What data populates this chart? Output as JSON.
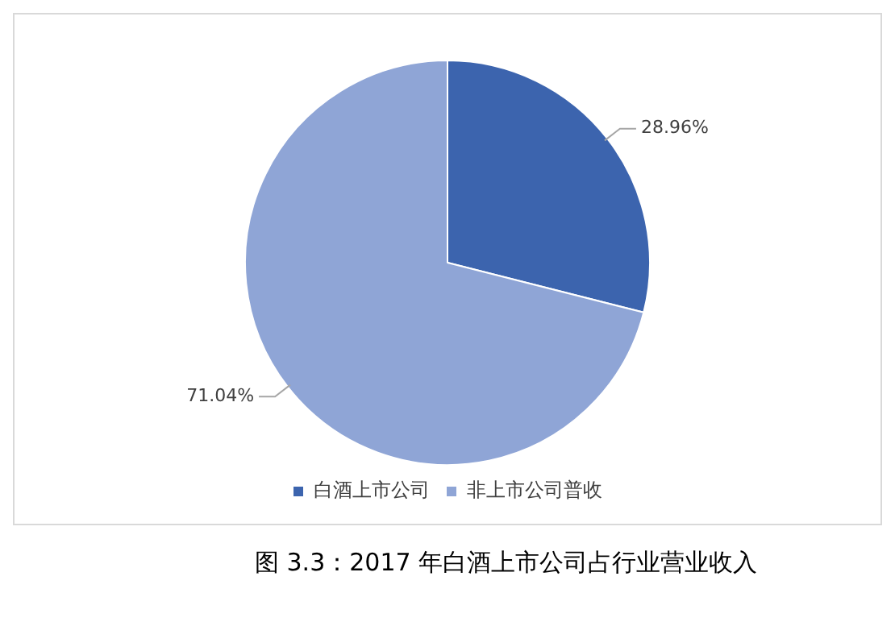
{
  "chart_data": {
    "type": "pie",
    "categories": [
      "白酒上市公司",
      "非上市公司普收"
    ],
    "values": [
      28.96,
      71.04
    ],
    "colors": [
      "#3c64ae",
      "#8fa5d6"
    ],
    "value_labels": [
      "28.96%",
      "71.04%"
    ],
    "legend": "bottom",
    "annotations": [
      "图 3.3：2017 年白酒上市公司占行业营业收入"
    ]
  }
}
